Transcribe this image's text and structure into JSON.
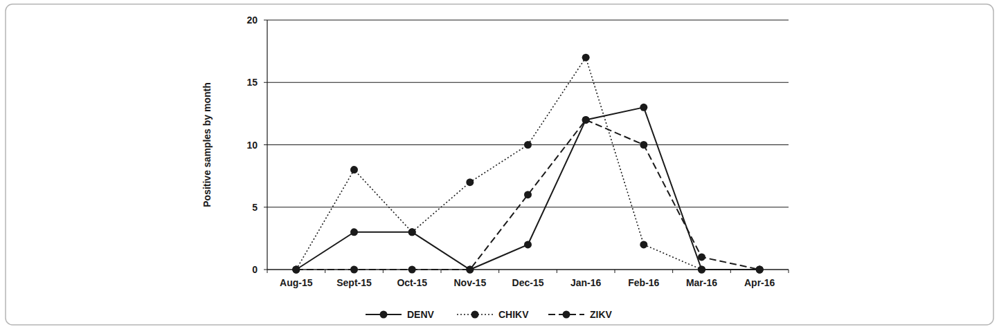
{
  "chart_data": {
    "type": "line",
    "y_label": "Positive samples by month",
    "categories": [
      "Aug-15",
      "Sept-15",
      "Oct-15",
      "Nov-15",
      "Dec-15",
      "Jan-16",
      "Feb-16",
      "Mar-16",
      "Apr-16"
    ],
    "series": [
      {
        "name": "DENV",
        "color": "#1a1a1a",
        "marker": "circle",
        "line_style": "solid",
        "values": [
          0,
          3,
          3,
          0,
          2,
          12,
          13,
          0,
          0
        ]
      },
      {
        "name": "CHIKV",
        "color": "#1a1a1a",
        "marker": "circle",
        "line_style": "dotted",
        "values": [
          0,
          8,
          3,
          7,
          10,
          17,
          2,
          0,
          0
        ]
      },
      {
        "name": "ZIKV",
        "color": "#1a1a1a",
        "marker": "circle",
        "line_style": "dashed",
        "values": [
          0,
          0,
          0,
          0,
          6,
          12,
          10,
          1,
          0
        ]
      }
    ],
    "ylim": [
      0,
      20
    ],
    "yticks": [
      0,
      5,
      10,
      15,
      20
    ],
    "grid": true,
    "legend": "bottom"
  }
}
